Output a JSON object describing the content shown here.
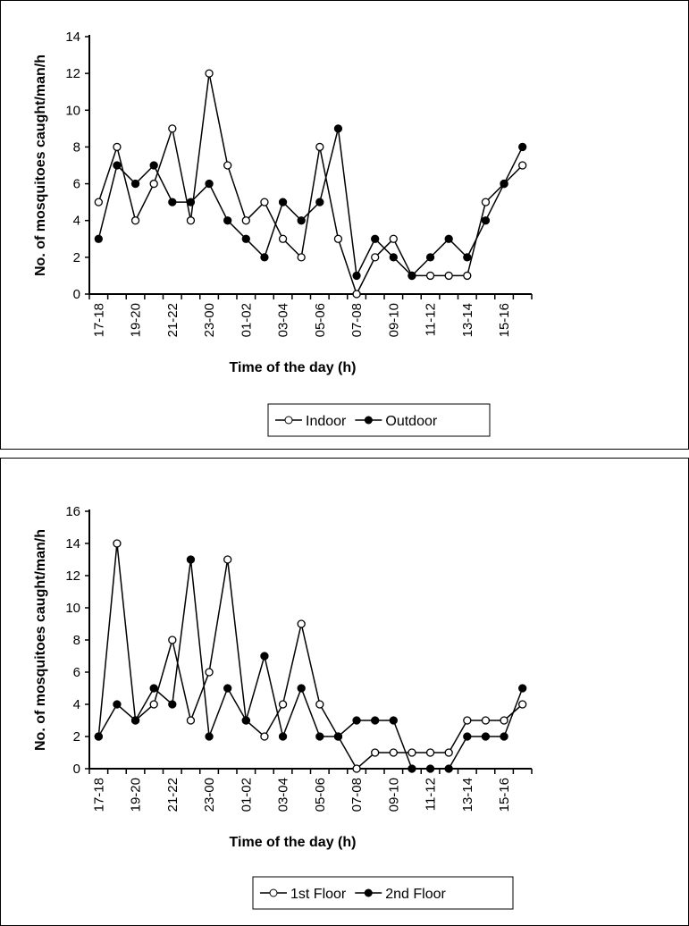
{
  "chart_data": [
    {
      "type": "line",
      "xlabel": "Time of the day (h)",
      "ylabel": "No. of mosquitoes caught/man/h",
      "ylim": [
        0,
        14
      ],
      "ystep": 2,
      "categories": [
        "17-18",
        "18-19",
        "19-20",
        "20-21",
        "21-22",
        "22-23",
        "23-00",
        "00-01",
        "01-02",
        "02-03",
        "03-04",
        "04-05",
        "05-06",
        "06-07",
        "07-08",
        "08-09",
        "09-10",
        "10-11",
        "11-12",
        "12-13",
        "13-14",
        "14-15",
        "15-16",
        "16-17"
      ],
      "tick_labels": [
        "17-18",
        "19-20",
        "21-22",
        "23-00",
        "01-02",
        "03-04",
        "05-06",
        "07-08",
        "09-10",
        "11-12",
        "13-14",
        "15-16"
      ],
      "legend": "bottom",
      "series": [
        {
          "name": "Indoor",
          "marker": "open-circle",
          "values": [
            5,
            8,
            4,
            6,
            9,
            4,
            12,
            7,
            4,
            5,
            3,
            2,
            8,
            3,
            0,
            2,
            3,
            1,
            1,
            1,
            1,
            5,
            6,
            7
          ]
        },
        {
          "name": "Outdoor",
          "marker": "filled-circle",
          "values": [
            3,
            7,
            6,
            7,
            5,
            5,
            6,
            4,
            3,
            2,
            5,
            4,
            5,
            9,
            1,
            3,
            2,
            1,
            2,
            3,
            2,
            4,
            6,
            8
          ]
        }
      ]
    },
    {
      "type": "line",
      "xlabel": "Time of the day (h)",
      "ylabel": "No. of mosquitoes caught/man/h",
      "ylim": [
        0,
        16
      ],
      "ystep": 2,
      "categories": [
        "17-18",
        "18-19",
        "19-20",
        "20-21",
        "21-22",
        "22-23",
        "23-00",
        "00-01",
        "01-02",
        "02-03",
        "03-04",
        "04-05",
        "05-06",
        "06-07",
        "07-08",
        "08-09",
        "09-10",
        "10-11",
        "11-12",
        "12-13",
        "13-14",
        "14-15",
        "15-16",
        "16-17"
      ],
      "tick_labels": [
        "17-18",
        "19-20",
        "21-22",
        "23-00",
        "01-02",
        "03-04",
        "05-06",
        "07-08",
        "09-10",
        "11-12",
        "13-14",
        "15-16"
      ],
      "legend": "bottom",
      "series": [
        {
          "name": "1st Floor",
          "marker": "open-circle",
          "values": [
            2,
            14,
            3,
            4,
            8,
            3,
            6,
            13,
            3,
            2,
            4,
            9,
            4,
            2,
            0,
            1,
            1,
            1,
            1,
            1,
            3,
            3,
            3,
            4
          ]
        },
        {
          "name": "2nd Floor",
          "marker": "filled-circle",
          "values": [
            2,
            4,
            3,
            5,
            4,
            13,
            2,
            5,
            3,
            7,
            2,
            5,
            2,
            2,
            3,
            3,
            3,
            0,
            0,
            0,
            2,
            2,
            2,
            5
          ]
        }
      ]
    }
  ]
}
